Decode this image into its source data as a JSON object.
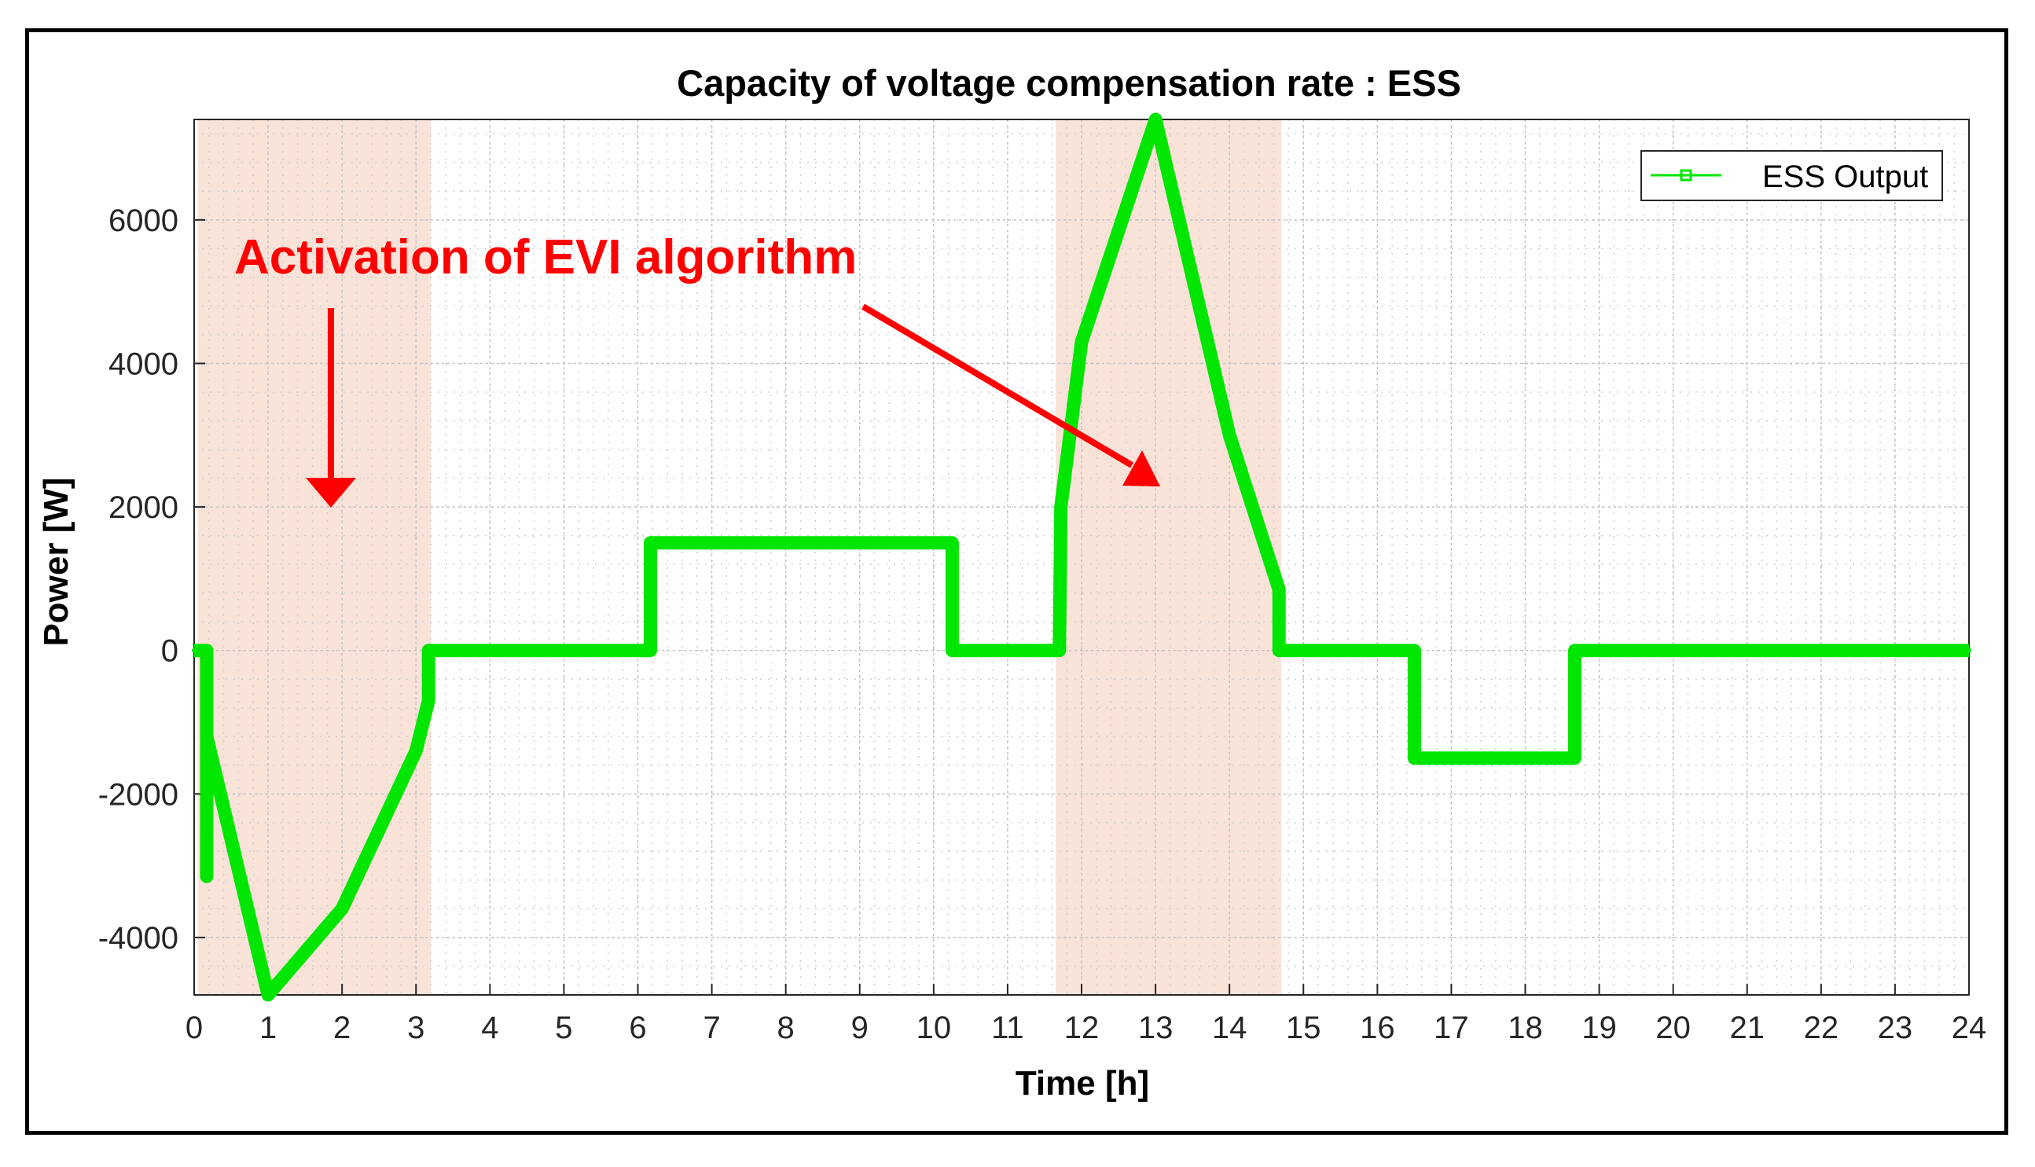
{
  "chart_data": {
    "type": "line",
    "title": "Capacity of voltage compensation rate : ESS",
    "xlabel": "Time [h]",
    "ylabel": "Power [W]",
    "xlim": [
      0,
      24
    ],
    "ylim": [
      -4800,
      7400
    ],
    "xticks": [
      0,
      1,
      2,
      3,
      4,
      5,
      6,
      7,
      8,
      9,
      10,
      11,
      12,
      13,
      14,
      15,
      16,
      17,
      18,
      19,
      20,
      21,
      22,
      23,
      24
    ],
    "yticks": [
      -4000,
      -2000,
      0,
      2000,
      4000,
      6000
    ],
    "grid": true,
    "minor_grid": true,
    "legend": {
      "position": "top-right",
      "entries": [
        "ESS Output"
      ]
    },
    "series": [
      {
        "name": "ESS Output",
        "color": "#00e600",
        "x": [
          0,
          0.17,
          0.17,
          0.17,
          1.0,
          2.0,
          3.0,
          3.17,
          3.17,
          6.0,
          6.17,
          6.17,
          10.25,
          10.25,
          10.25,
          11.7,
          11.72,
          12.0,
          13.0,
          14.0,
          14.67,
          14.67,
          16.5,
          16.5,
          18.67,
          18.67,
          24
        ],
        "values": [
          0,
          0,
          -3150,
          -1200,
          -4800,
          -3600,
          -1400,
          -700,
          0,
          0,
          0,
          1500,
          1500,
          700,
          0,
          0,
          2000,
          4300,
          7400,
          3000,
          850,
          0,
          0,
          -1500,
          -1500,
          0,
          0
        ]
      }
    ],
    "annotations": [
      {
        "text": "Activation of EVI algorithm",
        "color": "#ff0000"
      }
    ],
    "shaded_regions": [
      {
        "x": [
          0.05,
          3.2
        ],
        "color": "#f9e3d9"
      },
      {
        "x": [
          11.65,
          14.7
        ],
        "color": "#f9e3d9"
      }
    ]
  }
}
